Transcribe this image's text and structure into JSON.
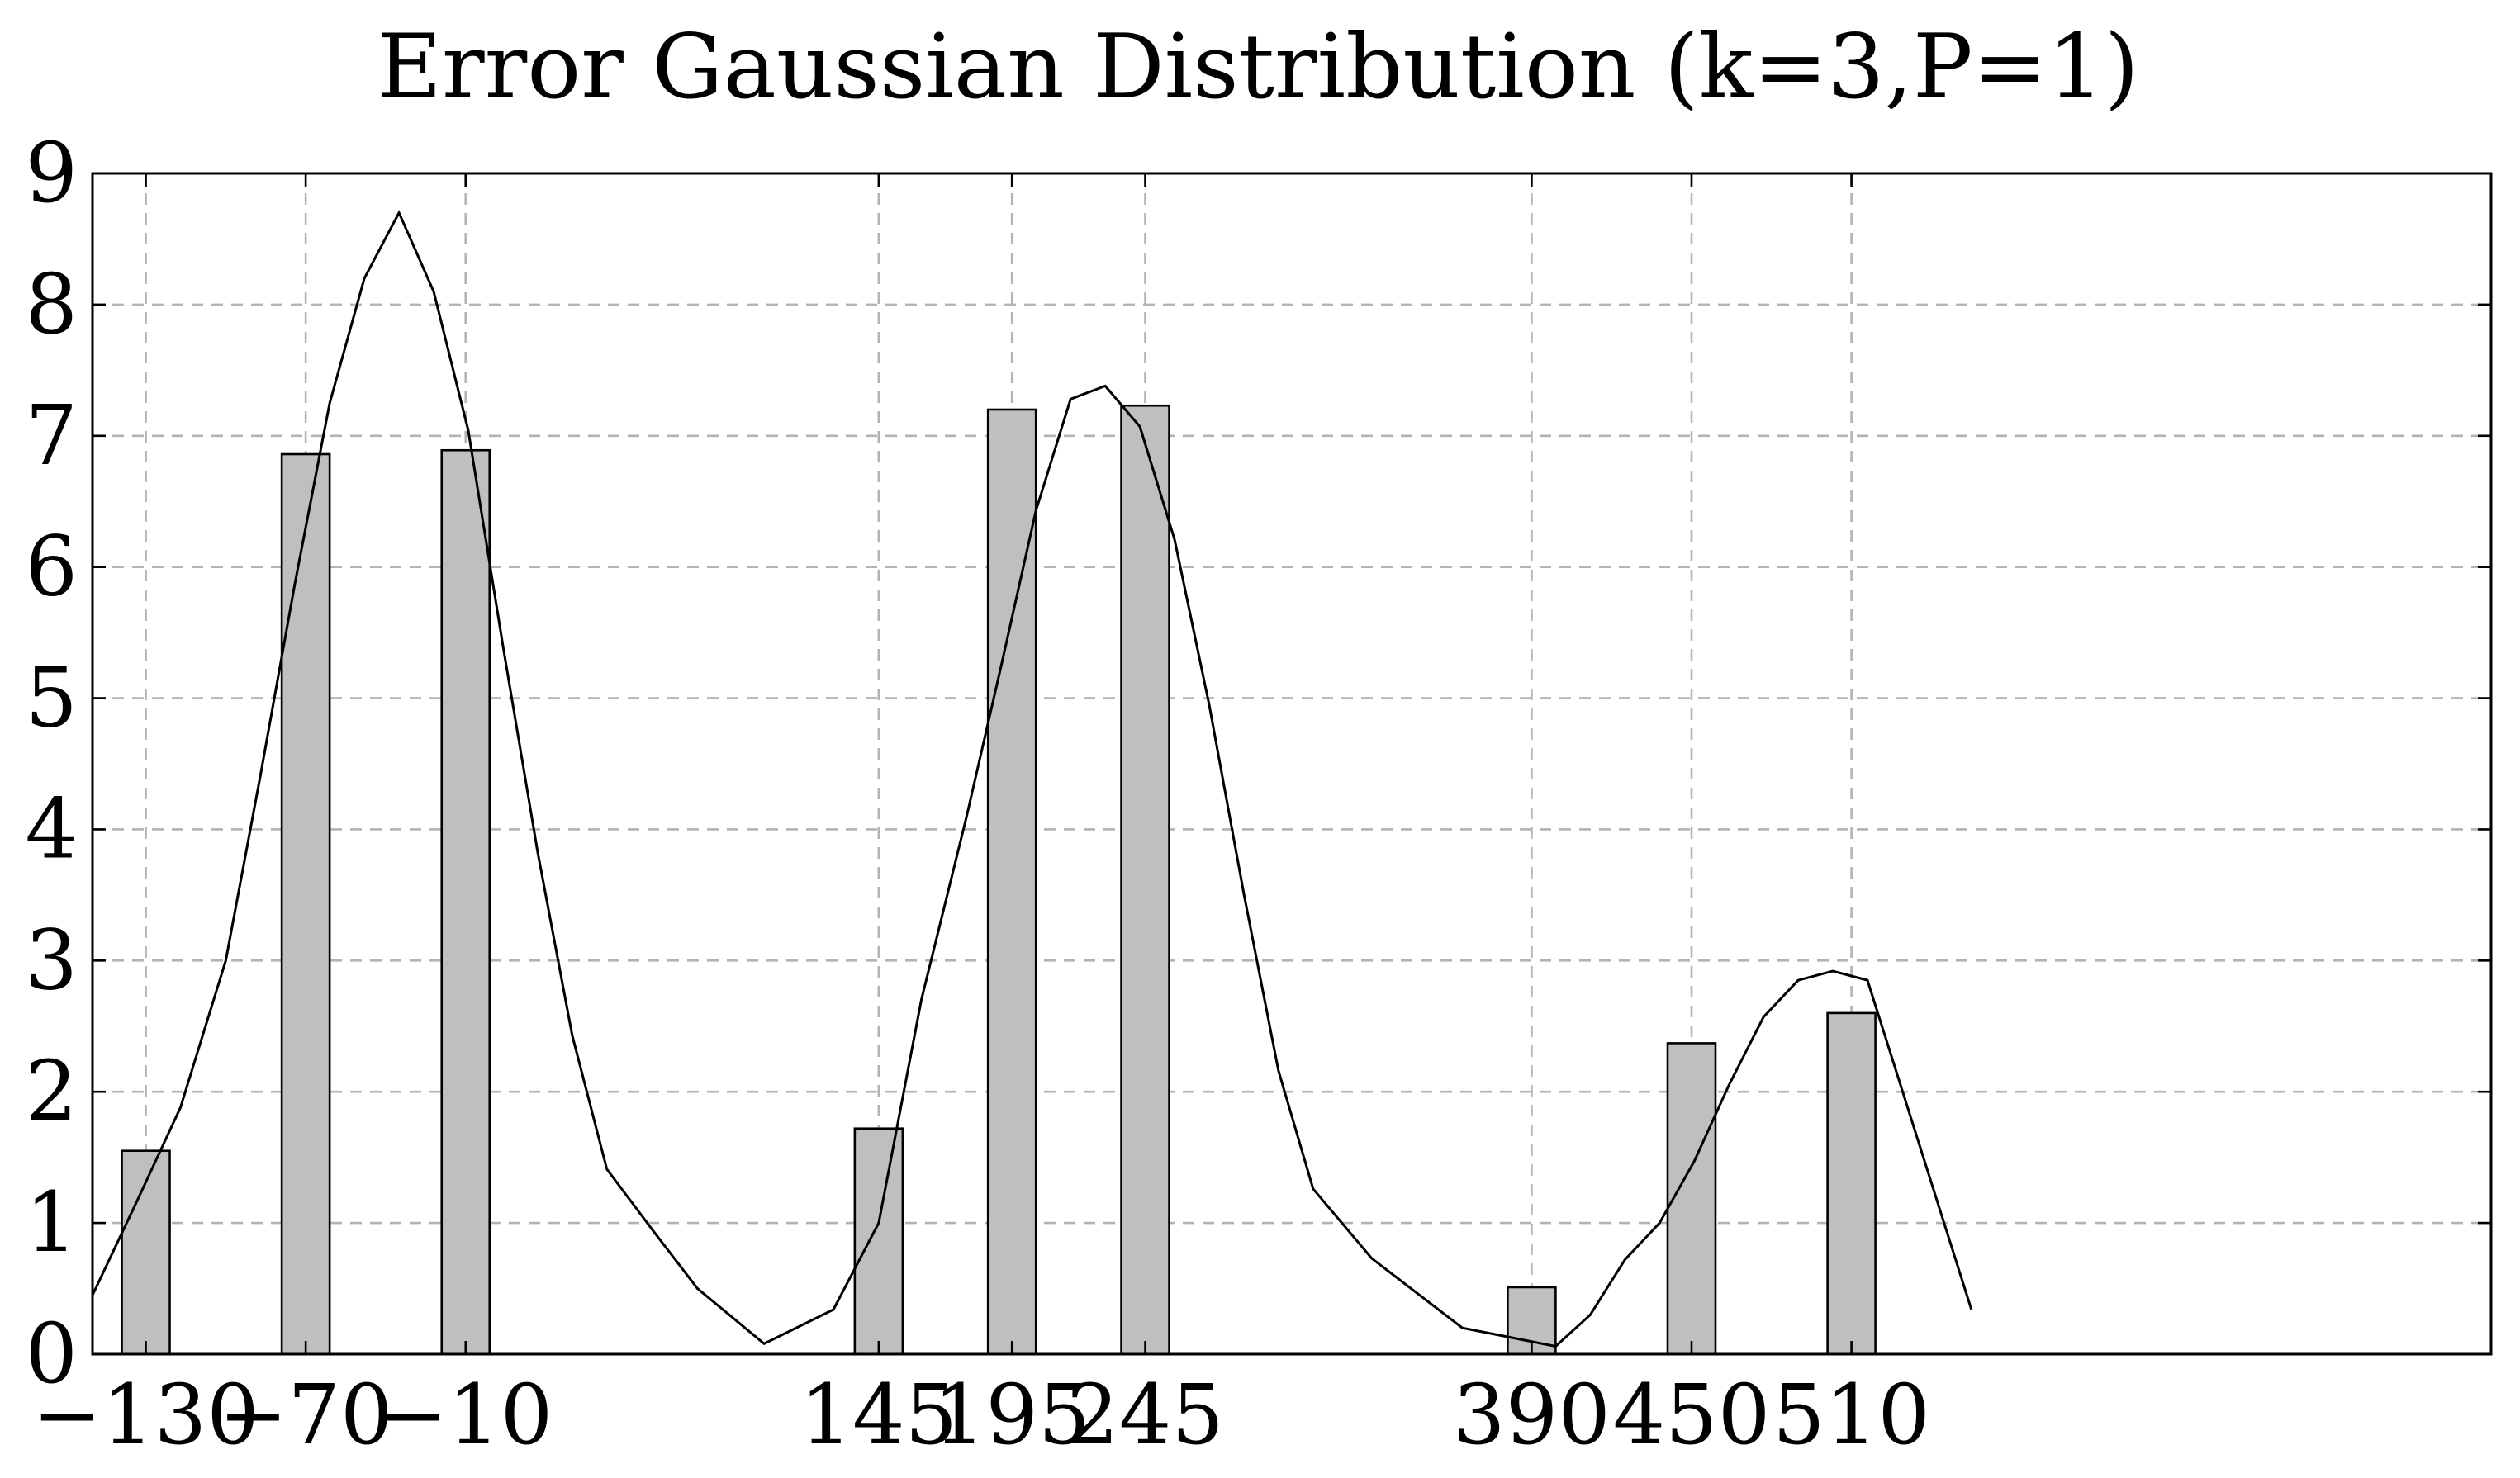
{
  "chart_data": {
    "type": "bar",
    "title": "Error Gaussian Distribution (k=3,P=1)",
    "xlabel": "",
    "ylabel": "",
    "xlim": [
      -150,
      750
    ],
    "ylim": [
      0,
      9
    ],
    "grid": true,
    "x_ticks": [
      -130,
      -70,
      -10,
      145,
      195,
      245,
      390,
      450,
      510
    ],
    "x_tick_labels": [
      "−130",
      "−70",
      "−10",
      "145",
      "195",
      "245",
      "390",
      "450",
      "510"
    ],
    "y_ticks": [
      0,
      1,
      2,
      3,
      4,
      5,
      6,
      7,
      8,
      9
    ],
    "y_tick_labels": [
      "0",
      "1",
      "2",
      "3",
      "4",
      "5",
      "6",
      "7",
      "8",
      "9"
    ],
    "bars": {
      "x": [
        -130,
        -70,
        -10,
        145,
        195,
        245,
        390,
        450,
        510
      ],
      "values": [
        1.55,
        6.86,
        6.89,
        1.72,
        7.2,
        7.23,
        0.51,
        2.37,
        2.6
      ],
      "color": "#bfbfbf"
    },
    "curve": {
      "type": "line",
      "color": "#000000",
      "x": [
        -150,
        -133,
        -117,
        -100,
        -87,
        -74,
        -61,
        -48,
        -35,
        -22,
        -9,
        4,
        17,
        30,
        43,
        60,
        77,
        102,
        128,
        145,
        161,
        178,
        191,
        204,
        217,
        230,
        243,
        256,
        269,
        282,
        295,
        308,
        330,
        364,
        399,
        412,
        425,
        438,
        451,
        464,
        477,
        490,
        503,
        516,
        555
      ],
      "y": [
        0.45,
        1.18,
        1.88,
        3.0,
        4.41,
        5.88,
        7.25,
        8.2,
        8.7,
        8.1,
        7.04,
        5.4,
        3.83,
        2.43,
        1.41,
        0.95,
        0.5,
        0.08,
        0.34,
        1.0,
        2.7,
        4.1,
        5.25,
        6.43,
        7.28,
        7.38,
        7.07,
        6.21,
        4.95,
        3.51,
        2.16,
        1.26,
        0.73,
        0.2,
        0.06,
        0.3,
        0.72,
        1.0,
        1.47,
        2.05,
        2.57,
        2.85,
        2.92,
        2.85,
        0.34
      ]
    }
  }
}
